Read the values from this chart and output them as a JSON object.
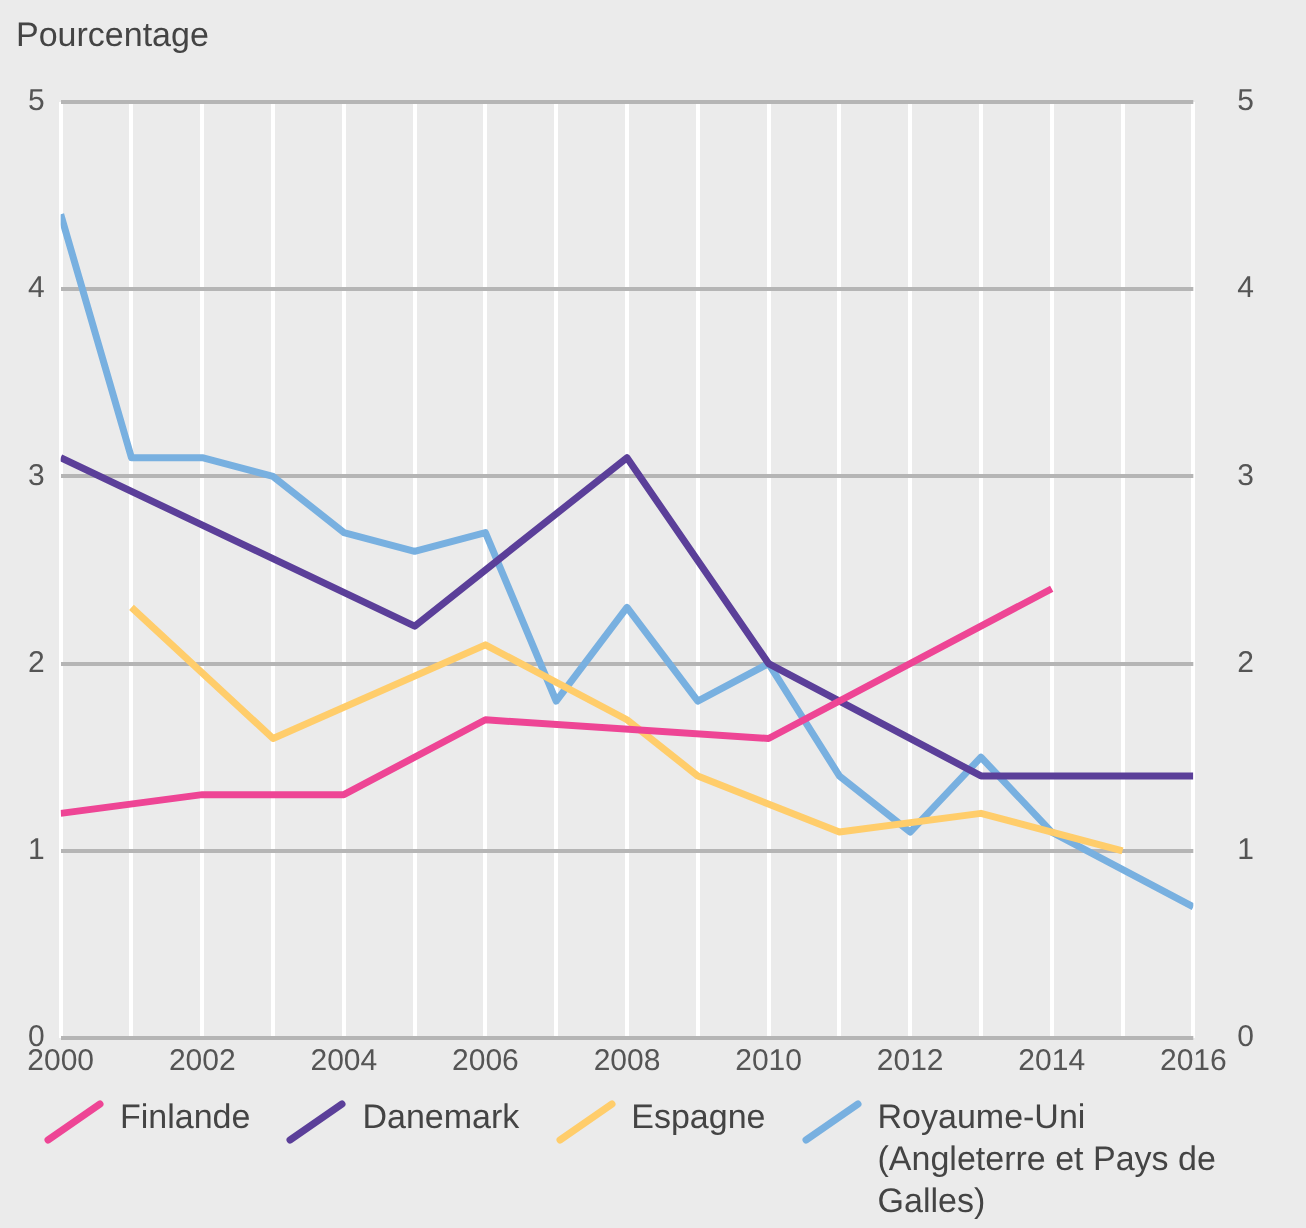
{
  "chart_data": {
    "type": "line",
    "ylabel": "Pourcentage",
    "xlim": [
      2000,
      2016
    ],
    "xticks": [
      2000,
      {
        "value": 2001,
        "label": null
      },
      2002,
      {
        "value": 2003,
        "label": null
      },
      2004,
      {
        "value": 2005,
        "label": null
      },
      2006,
      {
        "value": 2007,
        "label": null
      },
      2008,
      {
        "value": 2009,
        "label": null
      },
      2010,
      {
        "value": 2011,
        "label": null
      },
      2012,
      {
        "value": 2013,
        "label": null
      },
      2014,
      {
        "value": 2015,
        "label": null
      },
      2016
    ],
    "ylim": [
      0,
      5
    ],
    "yticks": [
      0,
      1,
      2,
      3,
      4,
      5
    ],
    "y2lim": [
      0,
      5
    ],
    "y2ticks": [
      0,
      1,
      2,
      3,
      4,
      5
    ],
    "grid": true,
    "legend": "bottom",
    "marker": "none",
    "line_style": "solid",
    "series": [
      {
        "name": "Finlande",
        "color": "#ee4595",
        "x": [
          2000,
          2002,
          2004,
          2006,
          2010,
          2014
        ],
        "values": [
          1.2,
          1.3,
          1.3,
          1.7,
          1.6,
          2.4
        ]
      },
      {
        "name": "Danemark",
        "color": "#5b3f99",
        "x": [
          2000,
          2005,
          2008,
          2010,
          2013,
          2016
        ],
        "values": [
          3.1,
          2.2,
          3.1,
          2.0,
          1.4,
          1.4
        ]
      },
      {
        "name": "Espagne",
        "color": "#ffcd6b",
        "x": [
          2001,
          2003,
          2006,
          2008,
          2009,
          2011,
          2013,
          2015
        ],
        "values": [
          2.3,
          1.6,
          2.1,
          1.7,
          1.4,
          1.1,
          1.2,
          1.0
        ]
      },
      {
        "name": "Royaume-Uni (Angleterre et Pays de Galles)",
        "color": "#78b0e0",
        "x": [
          2000,
          2001,
          2002,
          2003,
          2004,
          2005,
          2006,
          2007,
          2008,
          2009,
          2010,
          2011,
          2012,
          2013,
          2014,
          2016
        ],
        "values": [
          4.4,
          3.1,
          3.1,
          3.0,
          2.7,
          2.6,
          2.7,
          1.8,
          2.3,
          1.8,
          2.0,
          1.4,
          1.1,
          1.5,
          1.1,
          0.7
        ]
      }
    ]
  }
}
